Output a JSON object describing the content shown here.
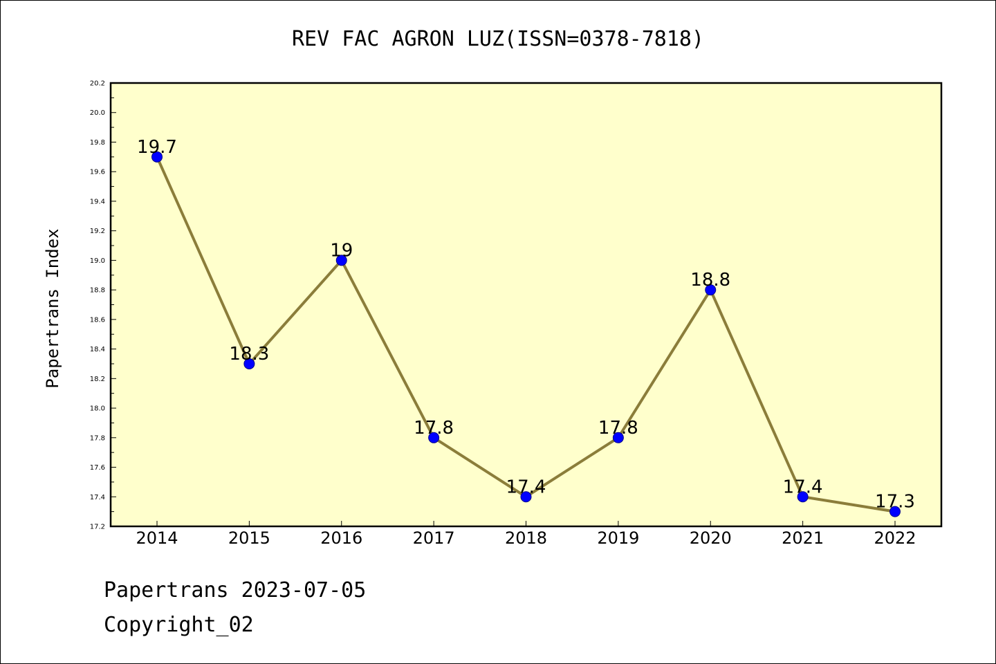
{
  "chart_data": {
    "type": "line",
    "title": "REV FAC AGRON LUZ(ISSN=0378-7818)",
    "xlabel": "",
    "ylabel": "Papertrans Index",
    "categories": [
      "2014",
      "2015",
      "2016",
      "2017",
      "2018",
      "2019",
      "2020",
      "2021",
      "2022"
    ],
    "series": [
      {
        "values": [
          19.7,
          18.3,
          19.0,
          17.8,
          17.4,
          17.8,
          18.8,
          17.4,
          17.3
        ],
        "data_labels": [
          "19.7",
          "18.3",
          "19",
          "17.8",
          "17.4",
          "17.8",
          "18.8",
          "17.4",
          "17.3"
        ]
      }
    ],
    "ylim": [
      17.2,
      20.2
    ],
    "yticks": [
      "17.2",
      "17.4",
      "17.6",
      "17.8",
      "18.0",
      "18.2",
      "18.4",
      "18.6",
      "18.8",
      "19.0",
      "19.2",
      "19.4",
      "19.6",
      "19.8",
      "20.0",
      "20.2"
    ],
    "grid": false,
    "legend": "none",
    "colors": {
      "plot_background": "#ffffcc",
      "line": "#8b7d3a",
      "marker_fill": "#0000ff",
      "marker_edge": "#00008b",
      "axis": "#000000"
    }
  },
  "footer": {
    "date_text": "Papertrans 2023-07-05",
    "copyright_text": "Copyright_02"
  }
}
